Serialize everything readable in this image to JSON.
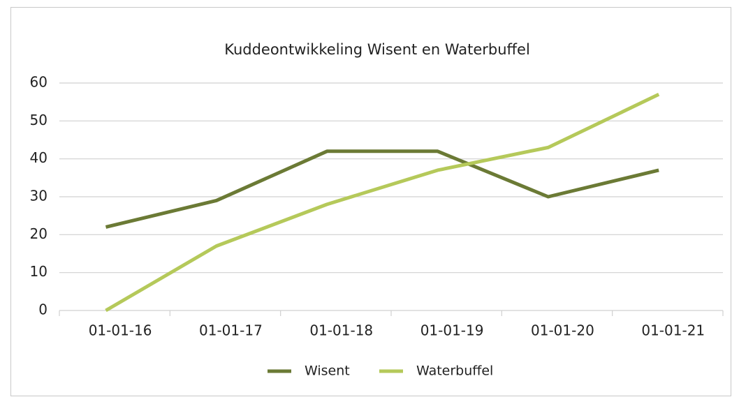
{
  "chart_data": {
    "type": "line",
    "title": "Kuddeontwikkeling Wisent en Waterbuffel",
    "categories": [
      "01-01-16",
      "01-01-17",
      "01-01-18",
      "01-01-19",
      "01-01-20",
      "01-01-21"
    ],
    "series": [
      {
        "name": "Wisent",
        "color": "#6b7a35",
        "values": [
          22,
          29,
          42,
          42,
          30,
          37
        ]
      },
      {
        "name": "Waterbuffel",
        "color": "#b5c95a",
        "values": [
          0,
          17,
          28,
          37,
          43,
          57
        ]
      }
    ],
    "ylim": [
      0,
      60
    ],
    "yticks": [
      0,
      10,
      20,
      30,
      40,
      50,
      60
    ],
    "grid": true,
    "legend": "bottom"
  }
}
